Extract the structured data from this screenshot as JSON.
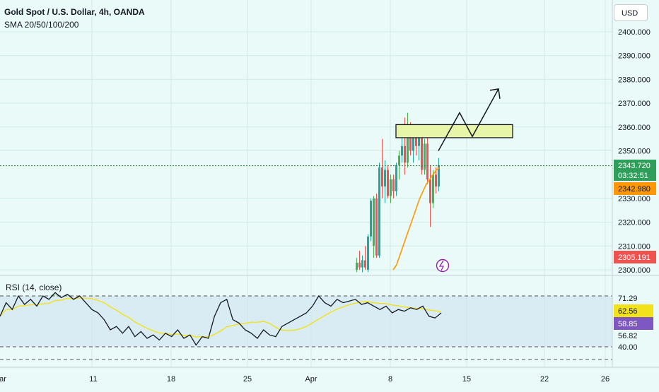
{
  "header": {
    "title": "Gold Spot / U.S. Dollar, 4h, OANDA",
    "indicator": "SMA 20/50/100/200"
  },
  "currency_button": "USD",
  "price_axis": {
    "ticks": [
      "2400.000",
      "2390.000",
      "2380.000",
      "2370.000",
      "2360.000",
      "2350.000",
      "2330.000",
      "2320.000",
      "2310.000",
      "2300.000"
    ]
  },
  "price_badges": {
    "last_price": "2343.720",
    "countdown": "03:32:51",
    "sma_value": "2342.980",
    "low_marker": "2305.191"
  },
  "rsi_pane": {
    "label": "RSI (14, close)",
    "ticks": [
      "71.29",
      "62.56",
      "58.85",
      "56.82",
      "40.00"
    ]
  },
  "time_axis": {
    "labels": [
      "ar",
      "11",
      "18",
      "25",
      "Apr",
      "8",
      "15",
      "22",
      "26"
    ]
  },
  "colors": {
    "background": "#e9faf8",
    "up": "#26a69a",
    "up_alt": "#4caf50",
    "down": "#ef5350",
    "sma": "#ff9800",
    "rsi_line": "#131722",
    "rsi_ma": "#f2e21b",
    "last_price_line": "#2e7d32",
    "zone_fill": "#e6f5a8"
  },
  "chart_data": {
    "type": "candlestick",
    "title": "Gold Spot / U.S. Dollar, 4h, OANDA",
    "price_axis": {
      "min": 2300,
      "max": 2400,
      "ticks": [
        2400,
        2390,
        2380,
        2370,
        2360,
        2350,
        2330,
        2320,
        2310,
        2300
      ]
    },
    "candles": [
      {
        "o": 2300,
        "h": 2305,
        "l": 2299,
        "c": 2303,
        "dir": "up"
      },
      {
        "o": 2303,
        "h": 2308,
        "l": 2300,
        "c": 2301,
        "dir": "down"
      },
      {
        "o": 2301,
        "h": 2306,
        "l": 2299,
        "c": 2304,
        "dir": "up"
      },
      {
        "o": 2304,
        "h": 2310,
        "l": 2300,
        "c": 2301,
        "dir": "down"
      },
      {
        "o": 2300,
        "h": 2315,
        "l": 2299,
        "c": 2314,
        "dir": "up"
      },
      {
        "o": 2314,
        "h": 2330,
        "l": 2312,
        "c": 2329,
        "dir": "up"
      },
      {
        "o": 2310,
        "h": 2331,
        "l": 2305,
        "c": 2330,
        "dir": "up"
      },
      {
        "o": 2330,
        "h": 2332,
        "l": 2305,
        "c": 2306,
        "dir": "down"
      },
      {
        "o": 2306,
        "h": 2345,
        "l": 2305,
        "c": 2343,
        "dir": "up"
      },
      {
        "o": 2343,
        "h": 2355,
        "l": 2330,
        "c": 2335,
        "dir": "down"
      },
      {
        "o": 2335,
        "h": 2346,
        "l": 2328,
        "c": 2342,
        "dir": "up"
      },
      {
        "o": 2342,
        "h": 2344,
        "l": 2330,
        "c": 2331,
        "dir": "down"
      },
      {
        "o": 2331,
        "h": 2340,
        "l": 2328,
        "c": 2338,
        "dir": "up"
      },
      {
        "o": 2338,
        "h": 2340,
        "l": 2330,
        "c": 2333,
        "dir": "down"
      },
      {
        "o": 2333,
        "h": 2345,
        "l": 2331,
        "c": 2344,
        "dir": "up"
      },
      {
        "o": 2344,
        "h": 2350,
        "l": 2338,
        "c": 2348,
        "dir": "up"
      },
      {
        "o": 2348,
        "h": 2360,
        "l": 2345,
        "c": 2352,
        "dir": "up"
      },
      {
        "o": 2352,
        "h": 2364,
        "l": 2340,
        "c": 2345,
        "dir": "down"
      },
      {
        "o": 2345,
        "h": 2366,
        "l": 2343,
        "c": 2358,
        "dir": "up"
      },
      {
        "o": 2358,
        "h": 2362,
        "l": 2348,
        "c": 2350,
        "dir": "down"
      },
      {
        "o": 2350,
        "h": 2360,
        "l": 2345,
        "c": 2357,
        "dir": "up"
      },
      {
        "o": 2357,
        "h": 2361,
        "l": 2348,
        "c": 2352,
        "dir": "down"
      },
      {
        "o": 2352,
        "h": 2360,
        "l": 2346,
        "c": 2356,
        "dir": "up"
      },
      {
        "o": 2356,
        "h": 2360,
        "l": 2340,
        "c": 2342,
        "dir": "down"
      },
      {
        "o": 2342,
        "h": 2355,
        "l": 2340,
        "c": 2353,
        "dir": "up"
      },
      {
        "o": 2353,
        "h": 2356,
        "l": 2336,
        "c": 2338,
        "dir": "down"
      },
      {
        "o": 2338,
        "h": 2344,
        "l": 2318,
        "c": 2328,
        "dir": "down"
      },
      {
        "o": 2328,
        "h": 2342,
        "l": 2326,
        "c": 2340,
        "dir": "up"
      },
      {
        "o": 2340,
        "h": 2343,
        "l": 2332,
        "c": 2335,
        "dir": "down"
      },
      {
        "o": 2335,
        "h": 2347,
        "l": 2333,
        "c": 2344,
        "dir": "up"
      }
    ],
    "sma": [
      2300,
      2302,
      2306,
      2310,
      2314,
      2318,
      2322,
      2326,
      2330,
      2333,
      2336,
      2338,
      2340,
      2342,
      2343
    ],
    "supply_zone": {
      "low": 2355.5,
      "high": 2361
    },
    "projection": [
      2350,
      2366,
      2356,
      2376
    ],
    "last_price": 2343.72,
    "rsi": {
      "ylim": [
        30,
        80
      ],
      "levels": [
        70,
        40
      ],
      "values": [
        58,
        66,
        62,
        70,
        65,
        68,
        64,
        70,
        68,
        72,
        69,
        71,
        68,
        70,
        66,
        62,
        60,
        56,
        50,
        52,
        48,
        52,
        46,
        49,
        45,
        47,
        44,
        48,
        46,
        50,
        45,
        47,
        41,
        46,
        45,
        58,
        66,
        68,
        56,
        54,
        50,
        48,
        45,
        50,
        47,
        46,
        52,
        54,
        56,
        58,
        60,
        64,
        70,
        66,
        64,
        68,
        66,
        67,
        68,
        65,
        66,
        64,
        62,
        64,
        60,
        62,
        61,
        63,
        62,
        64,
        58,
        57,
        60
      ]
    }
  }
}
